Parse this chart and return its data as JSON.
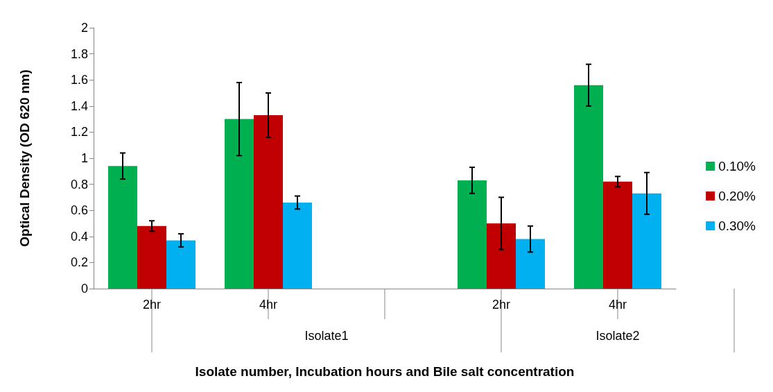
{
  "chart_data": {
    "type": "bar",
    "xlabel": "Isolate number, Incubation hours and Bile salt concentration",
    "ylabel": "Optical Density (OD 620 nm)",
    "categories": [
      "2hr",
      "4hr",
      null,
      "2hr",
      "4hr"
    ],
    "series": [
      {
        "name": "0.10%",
        "color": "#00b050",
        "values": [
          0.94,
          1.3,
          null,
          0.83,
          1.56
        ],
        "errors": [
          0.1,
          0.28,
          null,
          0.1,
          0.16
        ]
      },
      {
        "name": "0.20%",
        "color": "#c00000",
        "values": [
          0.48,
          1.33,
          null,
          0.5,
          0.82
        ],
        "errors": [
          0.04,
          0.17,
          null,
          0.2,
          0.04
        ]
      },
      {
        "name": "0.30%",
        "color": "#00b0f0",
        "values": [
          0.37,
          0.66,
          null,
          0.38,
          0.73
        ],
        "errors": [
          0.05,
          0.05,
          null,
          0.1,
          0.16
        ]
      }
    ],
    "annotations": [
      "Isolate1",
      "Isolate2"
    ],
    "ylim": [
      0,
      2
    ],
    "yticks": [
      0,
      0.2,
      0.4,
      0.6,
      0.8,
      1,
      1.2,
      1.4,
      1.6,
      1.8,
      2
    ],
    "grid": false,
    "legend": "right"
  }
}
